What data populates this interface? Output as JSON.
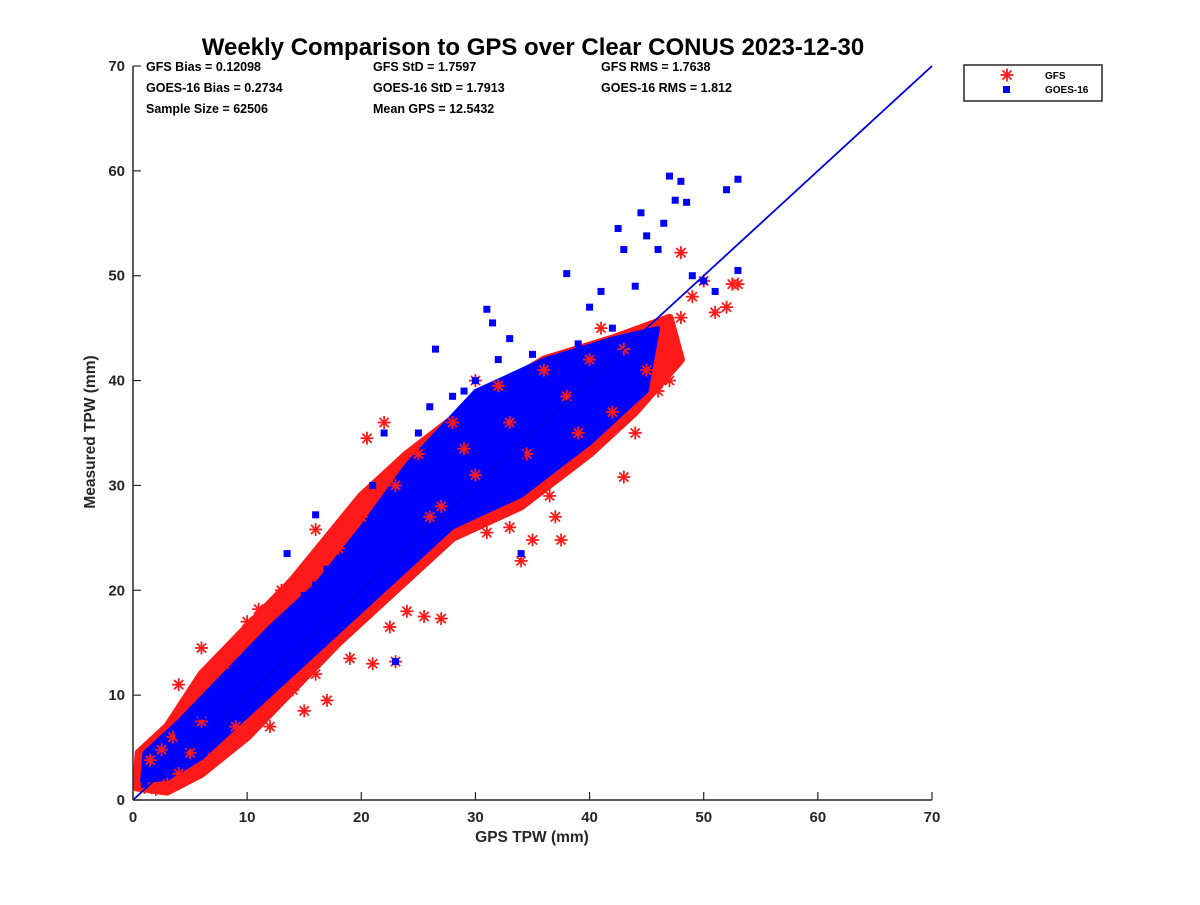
{
  "chart_data": {
    "type": "scatter",
    "title": "Weekly Comparison to GPS over Clear CONUS 2023-12-30",
    "xlabel": "GPS TPW (mm)",
    "ylabel": "Measured TPW (mm)",
    "xlim": [
      0,
      70
    ],
    "ylim": [
      0,
      70
    ],
    "xticks": [
      "0",
      "10",
      "20",
      "30",
      "40",
      "50",
      "60",
      "70"
    ],
    "yticks": [
      "0",
      "10",
      "20",
      "30",
      "40",
      "50",
      "60",
      "70"
    ],
    "grid": false,
    "legend_position": "top-right, outside plot",
    "stats": [
      [
        "GFS Bias = 0.12098",
        "GFS StD = 1.7597",
        "GFS RMS = 1.7638"
      ],
      [
        "GOES-16 Bias = 0.2734",
        "GOES-16 StD = 1.7913",
        "GOES-16 RMS = 1.812"
      ],
      [
        "Sample Size = 62506",
        "Mean GPS = 12.5432",
        ""
      ]
    ],
    "reference_line": {
      "x": [
        0,
        70
      ],
      "y": [
        0,
        70
      ],
      "color": "#0000dd"
    },
    "series": [
      {
        "name": "GFS",
        "marker": "asterisk",
        "color": "#ff1a1a",
        "points": [
          [
            1.0,
            1.2
          ],
          [
            1.5,
            3.8
          ],
          [
            2.0,
            1.0
          ],
          [
            2.5,
            4.8
          ],
          [
            3.0,
            1.5
          ],
          [
            3.5,
            6.0
          ],
          [
            4.0,
            2.5
          ],
          [
            4.0,
            11.0
          ],
          [
            5.0,
            4.5
          ],
          [
            6.0,
            14.5
          ],
          [
            6.0,
            7.5
          ],
          [
            7.0,
            4.0
          ],
          [
            8.0,
            13.0
          ],
          [
            9.0,
            7.0
          ],
          [
            10.0,
            17.0
          ],
          [
            11.0,
            18.2
          ],
          [
            12.0,
            7.0
          ],
          [
            13.0,
            20.0
          ],
          [
            14.0,
            10.5
          ],
          [
            15.0,
            8.5
          ],
          [
            15.5,
            22.5
          ],
          [
            16.0,
            25.8
          ],
          [
            16.0,
            12.0
          ],
          [
            17.0,
            9.5
          ],
          [
            18.0,
            24.0
          ],
          [
            19.0,
            13.5
          ],
          [
            20.0,
            27.0
          ],
          [
            20.5,
            34.5
          ],
          [
            21.0,
            29.0
          ],
          [
            21.0,
            13.0
          ],
          [
            22.0,
            36.0
          ],
          [
            22.5,
            16.5
          ],
          [
            23.0,
            13.2
          ],
          [
            23.0,
            30.0
          ],
          [
            24.0,
            18.0
          ],
          [
            25.0,
            33.0
          ],
          [
            25.5,
            17.5
          ],
          [
            26.0,
            27.0
          ],
          [
            27.0,
            17.3
          ],
          [
            27.0,
            28.0
          ],
          [
            28.0,
            36.0
          ],
          [
            29.0,
            33.5
          ],
          [
            30.0,
            31.0
          ],
          [
            30.0,
            40.0
          ],
          [
            31.0,
            25.5
          ],
          [
            32.0,
            39.5
          ],
          [
            33.0,
            26.0
          ],
          [
            33.0,
            36.0
          ],
          [
            34.0,
            22.8
          ],
          [
            34.5,
            33.0
          ],
          [
            35.0,
            24.8
          ],
          [
            36.0,
            41.0
          ],
          [
            36.5,
            29.0
          ],
          [
            37.0,
            27.0
          ],
          [
            37.5,
            24.8
          ],
          [
            38.0,
            38.5
          ],
          [
            39.0,
            35.0
          ],
          [
            40.0,
            42.0
          ],
          [
            41.0,
            45.0
          ],
          [
            42.0,
            37.0
          ],
          [
            43.0,
            30.8
          ],
          [
            43.0,
            43.0
          ],
          [
            44.0,
            35.0
          ],
          [
            45.0,
            41.0
          ],
          [
            46.0,
            39.0
          ],
          [
            47.0,
            40.0
          ],
          [
            48.0,
            46.0
          ],
          [
            48.0,
            52.2
          ],
          [
            49.0,
            48.0
          ],
          [
            50.0,
            49.5
          ],
          [
            51.0,
            46.5
          ],
          [
            52.0,
            47.0
          ],
          [
            52.5,
            49.2
          ],
          [
            53.0,
            49.2
          ]
        ]
      },
      {
        "name": "GOES-16",
        "marker": "square",
        "color": "#0000ff",
        "points": [
          [
            1.0,
            1.5
          ],
          [
            2.0,
            2.8
          ],
          [
            3.0,
            4.0
          ],
          [
            4.0,
            6.2
          ],
          [
            5.0,
            6.5
          ],
          [
            6.0,
            8.0
          ],
          [
            7.0,
            9.5
          ],
          [
            8.0,
            10.0
          ],
          [
            9.0,
            11.5
          ],
          [
            10.0,
            12.5
          ],
          [
            11.0,
            14.0
          ],
          [
            12.0,
            15.5
          ],
          [
            13.0,
            16.0
          ],
          [
            13.5,
            23.5
          ],
          [
            14.0,
            18.0
          ],
          [
            15.0,
            19.5
          ],
          [
            16.0,
            27.2
          ],
          [
            16.0,
            20.5
          ],
          [
            17.0,
            22.0
          ],
          [
            18.0,
            21.5
          ],
          [
            19.0,
            22.5
          ],
          [
            20.0,
            24.0
          ],
          [
            21.0,
            30.0
          ],
          [
            22.0,
            35.0
          ],
          [
            23.0,
            13.2
          ],
          [
            24.0,
            29.0
          ],
          [
            25.0,
            35.0
          ],
          [
            26.0,
            37.5
          ],
          [
            26.5,
            43.0
          ],
          [
            27.0,
            35.0
          ],
          [
            28.0,
            38.5
          ],
          [
            29.0,
            39.0
          ],
          [
            30.0,
            40.0
          ],
          [
            31.0,
            46.8
          ],
          [
            31.5,
            45.5
          ],
          [
            32.0,
            42.0
          ],
          [
            33.0,
            44.0
          ],
          [
            34.0,
            33.0
          ],
          [
            34.0,
            23.5
          ],
          [
            35.0,
            42.5
          ],
          [
            36.0,
            38.0
          ],
          [
            37.0,
            40.0
          ],
          [
            38.0,
            50.2
          ],
          [
            38.0,
            41.0
          ],
          [
            39.0,
            43.5
          ],
          [
            40.0,
            47.0
          ],
          [
            41.0,
            48.5
          ],
          [
            42.0,
            45.0
          ],
          [
            42.5,
            54.5
          ],
          [
            43.0,
            52.5
          ],
          [
            44.0,
            49.0
          ],
          [
            44.5,
            56.0
          ],
          [
            45.0,
            53.8
          ],
          [
            46.0,
            52.5
          ],
          [
            46.5,
            55.0
          ],
          [
            47.0,
            59.5
          ],
          [
            47.5,
            57.2
          ],
          [
            48.0,
            59.0
          ],
          [
            48.5,
            57.0
          ],
          [
            49.0,
            50.0
          ],
          [
            50.0,
            49.5
          ],
          [
            51.0,
            48.5
          ],
          [
            52.0,
            58.2
          ],
          [
            53.0,
            59.2
          ],
          [
            53.0,
            50.5
          ]
        ]
      }
    ]
  }
}
